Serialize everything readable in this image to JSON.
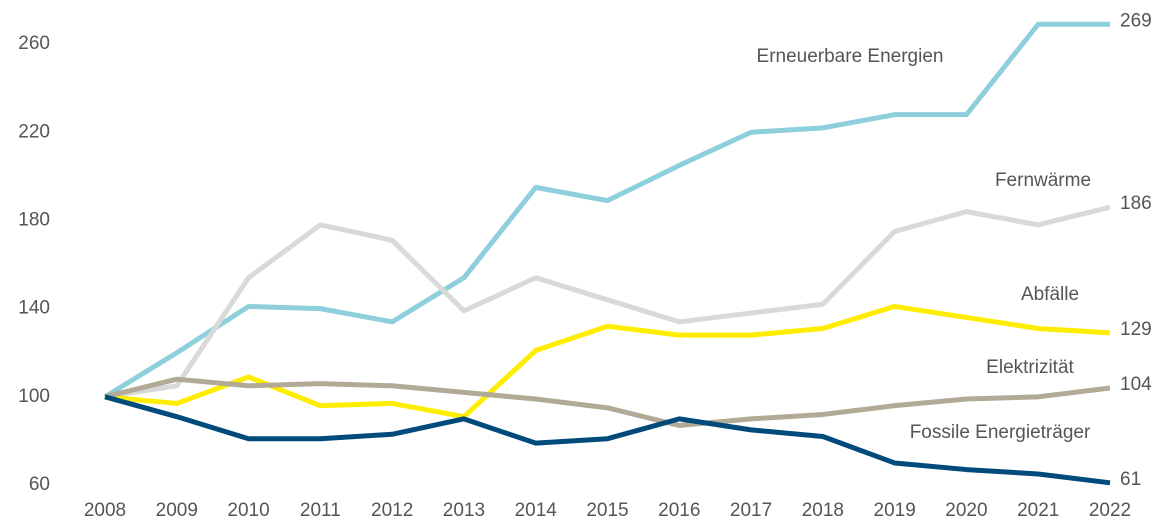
{
  "chart_data": {
    "type": "line",
    "x": [
      2008,
      2009,
      2010,
      2011,
      2012,
      2013,
      2014,
      2015,
      2016,
      2017,
      2018,
      2019,
      2020,
      2021,
      2022
    ],
    "series": [
      {
        "name": "Erneuerbare Energien",
        "color": "#8ecfdc",
        "values": [
          100,
          120,
          141,
          140,
          134,
          154,
          195,
          189,
          205,
          220,
          222,
          228,
          228,
          269,
          269
        ]
      },
      {
        "name": "Fernwärme",
        "color": "#d9d9d9",
        "values": [
          100,
          105,
          154,
          178,
          171,
          139,
          154,
          144,
          134,
          138,
          142,
          175,
          184,
          178,
          186
        ]
      },
      {
        "name": "Abfälle",
        "color": "#ffed00",
        "values": [
          100,
          97,
          109,
          96,
          97,
          91,
          121,
          132,
          128,
          128,
          131,
          141,
          136,
          131,
          129
        ]
      },
      {
        "name": "Elektrizität",
        "color": "#b0aa96",
        "values": [
          100,
          108,
          105,
          106,
          105,
          102,
          99,
          95,
          87,
          90,
          92,
          96,
          99,
          100,
          104
        ]
      },
      {
        "name": "Fossile Energieträger",
        "color": "#004b7c",
        "values": [
          100,
          91,
          81,
          81,
          83,
          90,
          79,
          81,
          90,
          85,
          82,
          70,
          67,
          65,
          61
        ]
      }
    ],
    "xlim": [
      2008,
      2022
    ],
    "xticks": [
      2008,
      2009,
      2010,
      2011,
      2012,
      2013,
      2014,
      2015,
      2016,
      2017,
      2018,
      2019,
      2020,
      2021,
      2022
    ],
    "ylim": [
      60,
      280
    ],
    "yticks": [
      60,
      100,
      140,
      180,
      220,
      260
    ],
    "grid": false
  }
}
